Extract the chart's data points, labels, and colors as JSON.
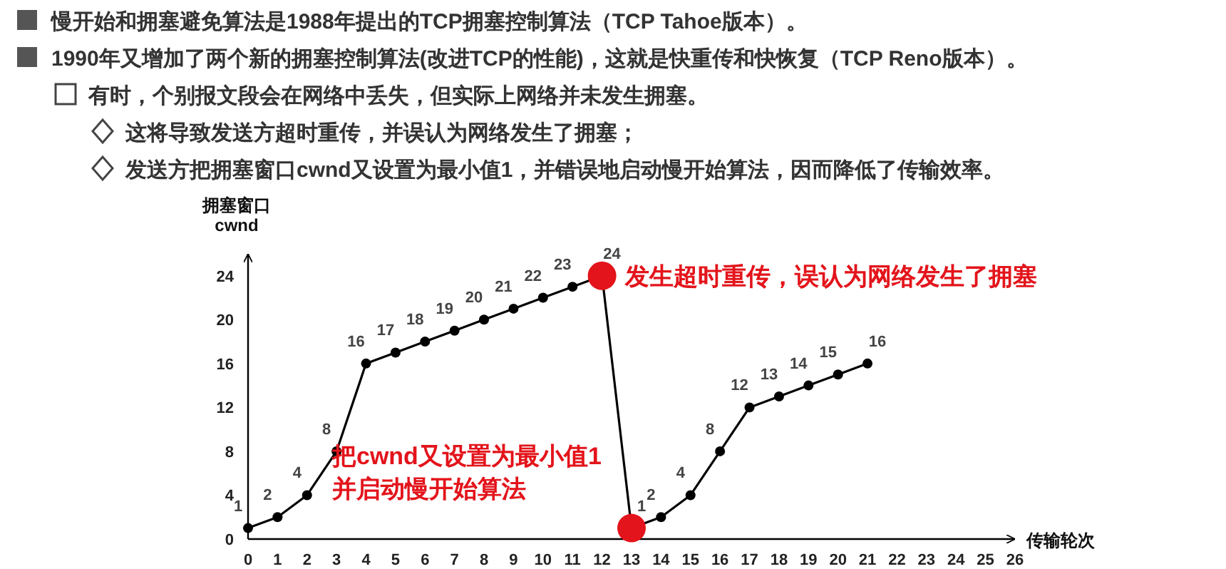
{
  "chart_data": {
    "type": "line",
    "annotations": [
      "慢开始和拥塞避免算法是1988年提出的TCP拥塞控制算法（TCP Tahoe版本）。",
      "1990年又增加了两个新的拥塞控制算法(改进TCP的性能)，这就是快重传和快恢复（TCP Reno版本）。",
      "有时，个别报文段会在网络中丢失，但实际上网络并未发生拥塞。",
      "这将导致发送方超时重传，并误认为网络发生了拥塞；",
      "发送方把拥塞窗口cwnd又设置为最小值1，并错误地启动慢开始算法，因而降低了传输效率。",
      {
        "text": "发生超时重传，误认为网络发生了拥塞",
        "x": 12,
        "y": 24
      },
      {
        "text": "把cwnd又设置为最小值1\n并启动慢开始算法",
        "x": 13,
        "y": 1
      }
    ],
    "xlabel": "传输轮次",
    "ylabel": "拥塞窗口\ncwnd",
    "x": [
      0,
      1,
      2,
      3,
      4,
      5,
      6,
      7,
      8,
      9,
      10,
      11,
      12,
      13,
      14,
      15,
      16,
      17,
      18,
      19,
      20,
      21
    ],
    "series": [
      {
        "color": "#000000",
        "values": [
          1,
          2,
          4,
          8,
          16,
          17,
          18,
          19,
          20,
          21,
          22,
          23,
          24,
          1,
          2,
          4,
          8,
          12,
          13,
          14,
          15,
          16
        ],
        "value_labels": [
          "1",
          "2",
          "4",
          "8",
          "16",
          "17",
          "18",
          "19",
          "20",
          "21",
          "22",
          "23",
          "24",
          "1",
          "2",
          "4",
          "8",
          "12",
          "13",
          "14",
          "15",
          "16"
        ]
      },
      {
        "type": "scatter",
        "color": "#e3141b",
        "x": [
          12,
          13
        ],
        "values": [
          24,
          1
        ]
      }
    ],
    "xlim": [
      0,
      26
    ],
    "xticks": [
      0,
      1,
      2,
      3,
      4,
      5,
      6,
      7,
      8,
      9,
      10,
      11,
      12,
      13,
      14,
      15,
      16,
      17,
      18,
      19,
      20,
      21,
      22,
      23,
      24,
      25,
      26
    ],
    "ylim": [
      0,
      26
    ],
    "yticks": [
      0,
      4,
      8,
      12,
      16,
      20,
      24
    ],
    "marker": "circle",
    "line_style": "solid",
    "grid": false
  }
}
